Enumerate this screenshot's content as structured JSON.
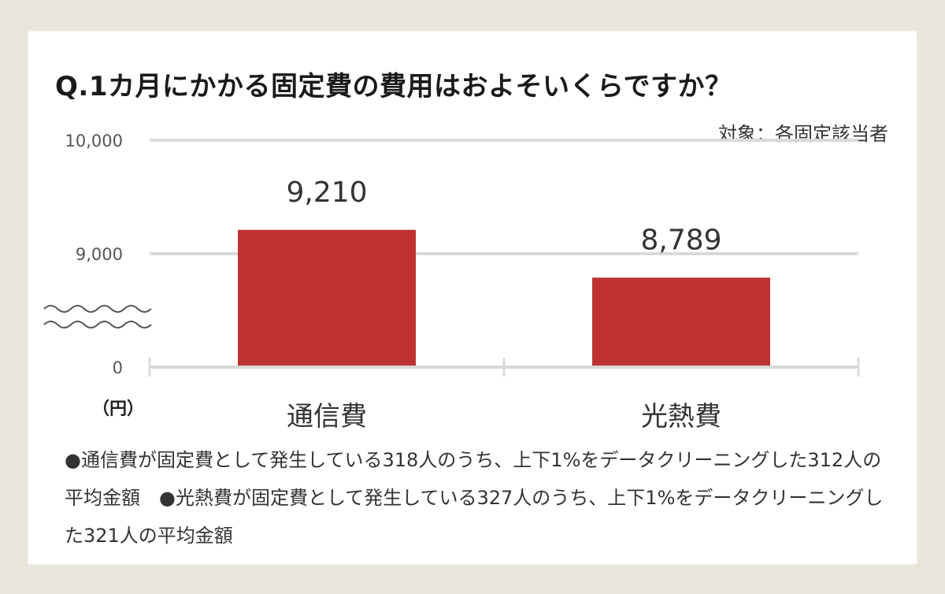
{
  "title": "Q.1カ月にかかる固定費の費用はおよそいくらですか？",
  "target_label": "対象：各固定該当者",
  "unit_label": "（円）",
  "notes": "●通信費が固定費として発生している318人のうち、上下1%をデータクリーニングした312人の平均金額　●光熱費が固定費として発生している327人のうち、上下1%をデータクリーニングした321人の平均金額",
  "colors": {
    "bar": "#bf3232",
    "grid": "#d9d9d9",
    "background": "#e9e6dc"
  },
  "chart_data": {
    "type": "bar",
    "categories": [
      "通信費",
      "光熱費"
    ],
    "values": [
      9210,
      8789
    ],
    "data_labels": [
      "9,210",
      "8,789"
    ],
    "ytick_labels": [
      "10,000",
      "9,000",
      "0"
    ],
    "yticks": [
      10000,
      9000,
      0
    ],
    "ylim": [
      8000,
      10000
    ],
    "axis_break": true,
    "ylabel": "（円）",
    "grid": true
  }
}
